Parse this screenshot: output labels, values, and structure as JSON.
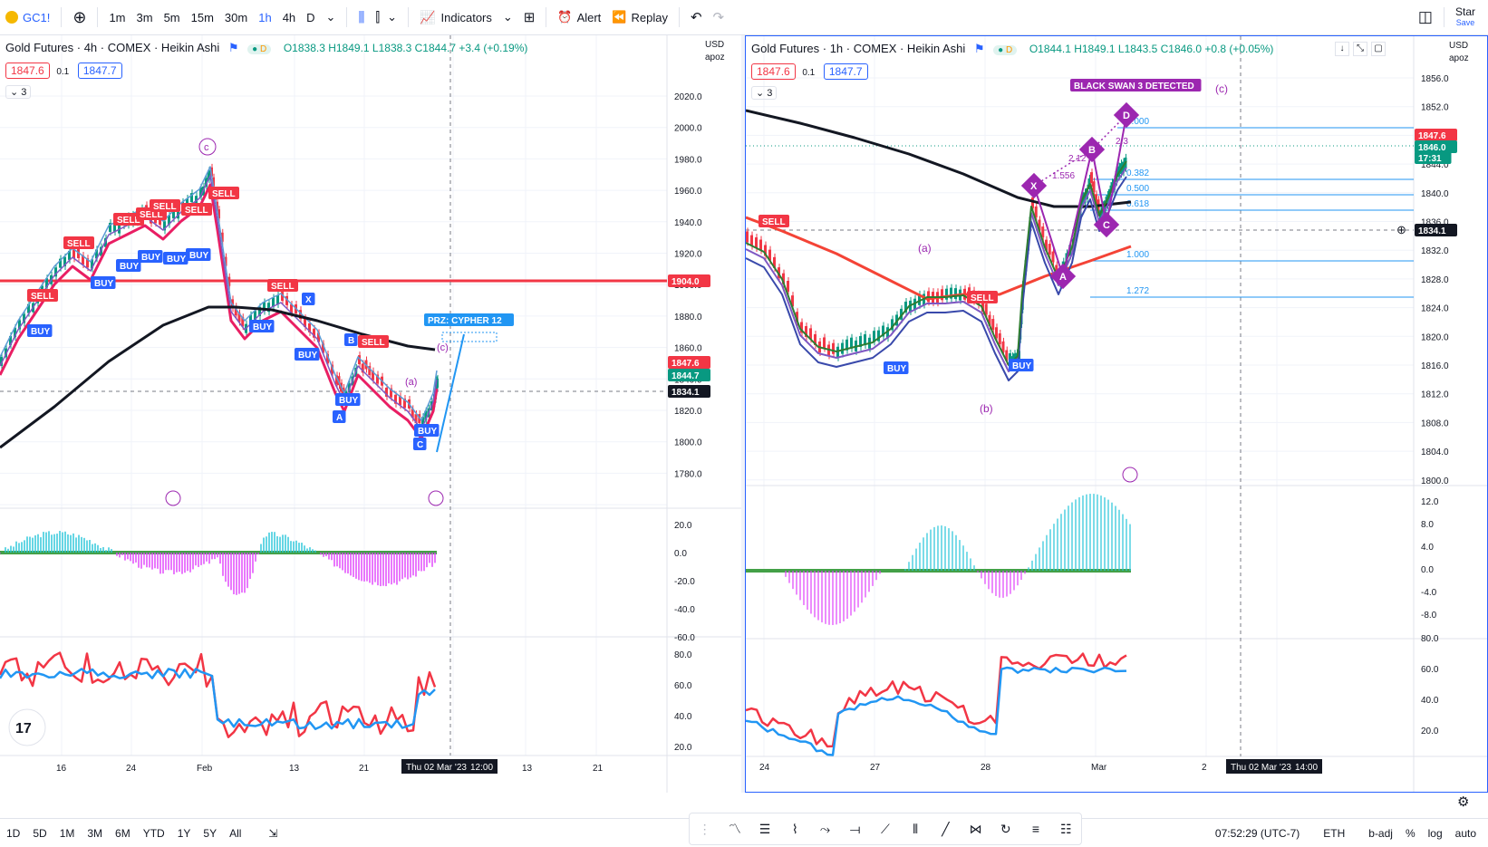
{
  "topbar": {
    "symbol": "GC1!",
    "timeframes": [
      "1m",
      "3m",
      "5m",
      "15m",
      "30m",
      "1h",
      "4h",
      "D"
    ],
    "active_timeframe": "1h",
    "indicators_label": "Indicators",
    "alert_label": "Alert",
    "replay_label": "Replay",
    "star_label": "Star",
    "save_label": "Save"
  },
  "left_chart": {
    "title": "Gold Futures · 4h · COMEX · Heikin Ashi",
    "ohlc": "O1838.3 H1849.1 L1838.3 C1844.7 +3.4 (+0.19%)",
    "bid": "1847.6",
    "spread": "0.1",
    "ask": "1847.7",
    "collapse_count": "3",
    "currency": "USD",
    "scale_mode": "apoz",
    "price_ticks": [
      "2020.0",
      "2000.0",
      "1980.0",
      "1960.0",
      "1940.0",
      "1920.0",
      "1900.0",
      "1880.0",
      "1860.0",
      "1840.0",
      "1820.0",
      "1800.0",
      "1780.0"
    ],
    "price_badges": {
      "red_line": "1904.0",
      "last": "1847.6",
      "close": "1844.7",
      "cursor": "1834.1"
    },
    "osc_ticks": [
      "20.0",
      "0.0",
      "-20.0",
      "-40.0",
      "-60.0"
    ],
    "rsi_ticks": [
      "80.0",
      "60.0",
      "40.0",
      "20.0"
    ],
    "time_ticks": [
      "16",
      "24",
      "Feb",
      "13",
      "21",
      "13",
      "21"
    ],
    "time_cursor": "Thu 02 Mar '23",
    "time_cursor_right": "12:00",
    "prz_label": "PRZ: CYPHER 12",
    "labels": {
      "c": "c",
      "a": "(a)",
      "c2": "(c)",
      "A": "A",
      "B": "B",
      "X": "X",
      "C": "C"
    }
  },
  "right_chart": {
    "title": "Gold Futures · 1h · COMEX · Heikin Ashi",
    "ohlc": "O1844.1 H1849.1 L1843.5 C1846.0 +0.8 (+0.05%)",
    "bid": "1847.6",
    "spread": "0.1",
    "ask": "1847.7",
    "collapse_count": "3",
    "currency": "USD",
    "scale_mode": "apoz",
    "price_ticks": [
      "1856.0",
      "1852.0",
      "1848.0",
      "1844.0",
      "1840.0",
      "1836.0",
      "1832.0",
      "1828.0",
      "1824.0",
      "1820.0",
      "1816.0",
      "1812.0",
      "1808.0",
      "1804.0",
      "1800.0"
    ],
    "price_badges": {
      "last": "1847.6",
      "close": "1846.0",
      "countdown": "17:31",
      "cursor": "1834.1"
    },
    "osc_ticks": [
      "12.0",
      "8.0",
      "4.0",
      "0.0",
      "-4.0",
      "-8.0"
    ],
    "rsi_ticks": [
      "80.0",
      "60.0",
      "40.0",
      "20.0"
    ],
    "time_ticks": [
      "24",
      "27",
      "28",
      "Mar",
      "2"
    ],
    "time_cursor": "Thu 02 Mar '23",
    "time_cursor_right": "14:00",
    "black_swan": "BLACK SWAN 3 DETECTED",
    "fib_levels": [
      "0.000",
      "0.382",
      "0.500",
      "0.618",
      "1.000",
      "1.272"
    ],
    "labels": {
      "a": "(a)",
      "b": "(b)",
      "c": "(c)",
      "X": "X",
      "A": "A",
      "B": "B",
      "C": "C",
      "D": "D",
      "r1": "1.556",
      "r2": "2.12",
      "r3": "2.3"
    }
  },
  "signals": {
    "buy": "BUY",
    "sell": "SELL"
  },
  "bottombar": {
    "ranges": [
      "1D",
      "5D",
      "1M",
      "3M",
      "6M",
      "YTD",
      "1Y",
      "5Y",
      "All"
    ],
    "clock": "07:52:29 (UTC-7)",
    "session": "ETH",
    "badj": "b-adj",
    "percent": "%",
    "log": "log",
    "auto": "auto"
  },
  "colors": {
    "accent": "#2962ff",
    "bull": "#089981",
    "bear": "#f23645",
    "purple": "#9c27b0"
  }
}
